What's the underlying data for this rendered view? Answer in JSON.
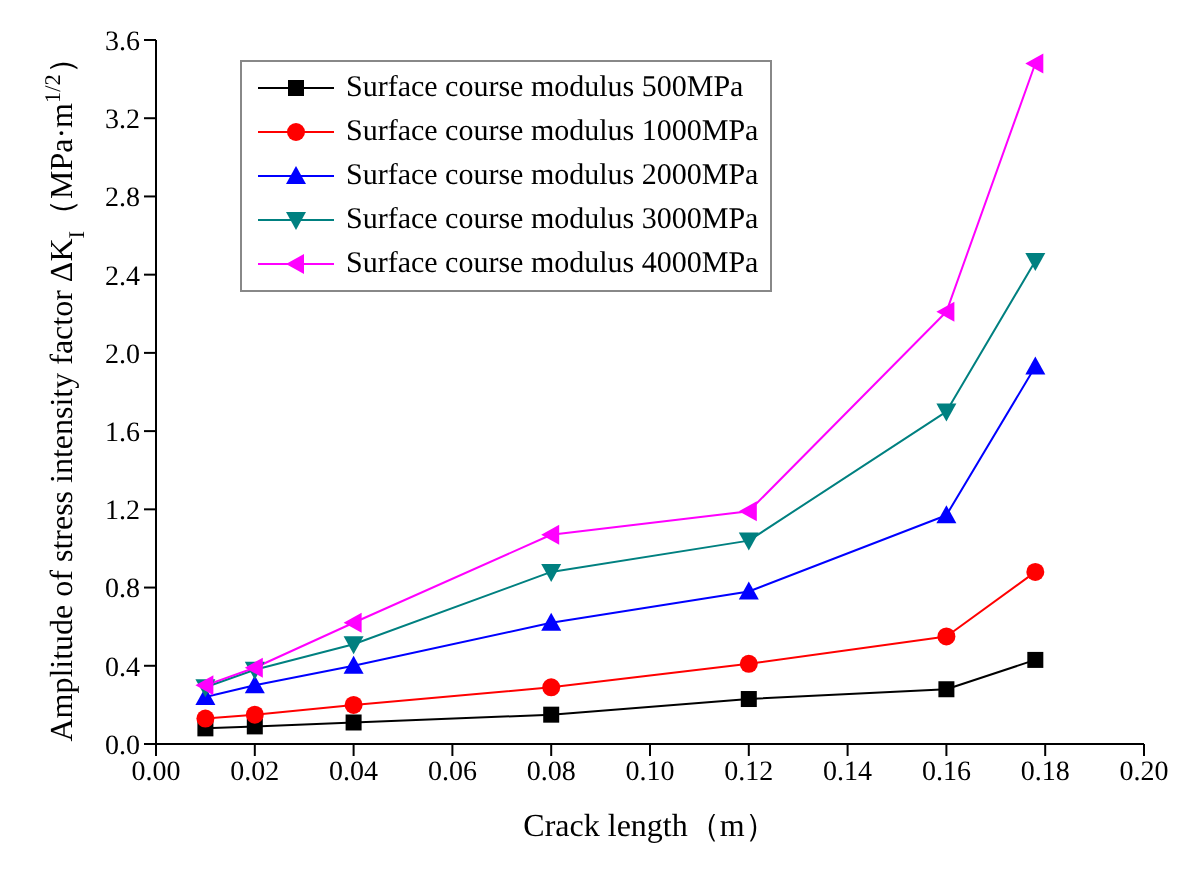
{
  "chart_data": {
    "type": "line",
    "xlabel": "Crack length（m）",
    "ylabel": "Amplitude of stress intensity factor ΔK$_{I}$（MPa·m$^{1/2}$）",
    "x": [
      0.01,
      0.02,
      0.04,
      0.08,
      0.12,
      0.16,
      0.178
    ],
    "series": [
      {
        "name": "Surface course modulus 500MPa",
        "color": "#000000",
        "marker": "square",
        "values": [
          0.08,
          0.09,
          0.11,
          0.15,
          0.23,
          0.28,
          0.43
        ]
      },
      {
        "name": "Surface course modulus 1000MPa",
        "color": "#ff0000",
        "marker": "circle",
        "values": [
          0.13,
          0.15,
          0.2,
          0.29,
          0.41,
          0.55,
          0.88
        ]
      },
      {
        "name": "Surface course modulus 2000MPa",
        "color": "#0000ff",
        "marker": "triangle",
        "values": [
          0.24,
          0.3,
          0.4,
          0.62,
          0.78,
          1.17,
          1.93
        ]
      },
      {
        "name": "Surface course modulus 3000MPa",
        "color": "#008080",
        "marker": "triangle-down",
        "values": [
          0.29,
          0.38,
          0.51,
          0.88,
          1.04,
          1.7,
          2.47
        ]
      },
      {
        "name": "Surface course modulus 4000MPa",
        "color": "#ff00ff",
        "marker": "triangle-left",
        "values": [
          0.3,
          0.39,
          0.62,
          1.07,
          1.19,
          2.21,
          3.48
        ]
      }
    ],
    "xlim": [
      0,
      0.2
    ],
    "xticks": [
      {
        "value": 0,
        "label": "0.00"
      },
      {
        "value": 0.02,
        "label": "0.02"
      },
      {
        "value": 0.04,
        "label": "0.04"
      },
      {
        "value": 0.06,
        "label": "0.06"
      },
      {
        "value": 0.08,
        "label": "0.08"
      },
      {
        "value": 0.1,
        "label": "0.10"
      },
      {
        "value": 0.12,
        "label": "0.12"
      },
      {
        "value": 0.14,
        "label": "0.14"
      },
      {
        "value": 0.16,
        "label": "0.16"
      },
      {
        "value": 0.18,
        "label": "0.18"
      },
      {
        "value": 0.2,
        "label": "0.20"
      }
    ],
    "ylim": [
      0,
      3.6
    ],
    "yticks": [
      {
        "value": 0,
        "label": "0.0"
      },
      {
        "value": 0.4,
        "label": "0.4"
      },
      {
        "value": 0.8,
        "label": "0.8"
      },
      {
        "value": 1.2,
        "label": "1.2"
      },
      {
        "value": 1.6,
        "label": "1.6"
      },
      {
        "value": 2,
        "label": "2.0"
      },
      {
        "value": 2.4,
        "label": "2.4"
      },
      {
        "value": 2.8,
        "label": "2.8"
      },
      {
        "value": 3.2,
        "label": "3.2"
      },
      {
        "value": 3.6,
        "label": "3.6"
      }
    ],
    "grid": false,
    "legend": "top left",
    "line_style": "solid"
  }
}
